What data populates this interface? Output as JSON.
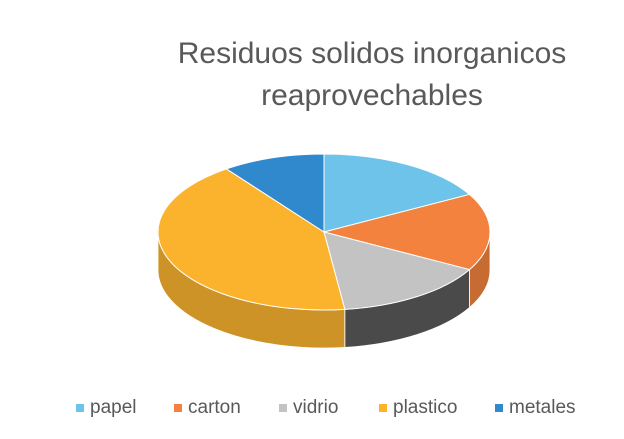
{
  "chart_data": {
    "type": "pie",
    "title": [
      "Residuos solidos inorganicos",
      "reaprovechables"
    ],
    "categories": [
      "papel",
      "carton",
      "vidrio",
      "plastico",
      "metales"
    ],
    "values": [
      17,
      16,
      15,
      42,
      10
    ],
    "colors": [
      "#6ec3ea",
      "#f2823d",
      "#c3c3c3",
      "#fbb32e",
      "#2f89cc"
    ],
    "legend": "bottom"
  }
}
